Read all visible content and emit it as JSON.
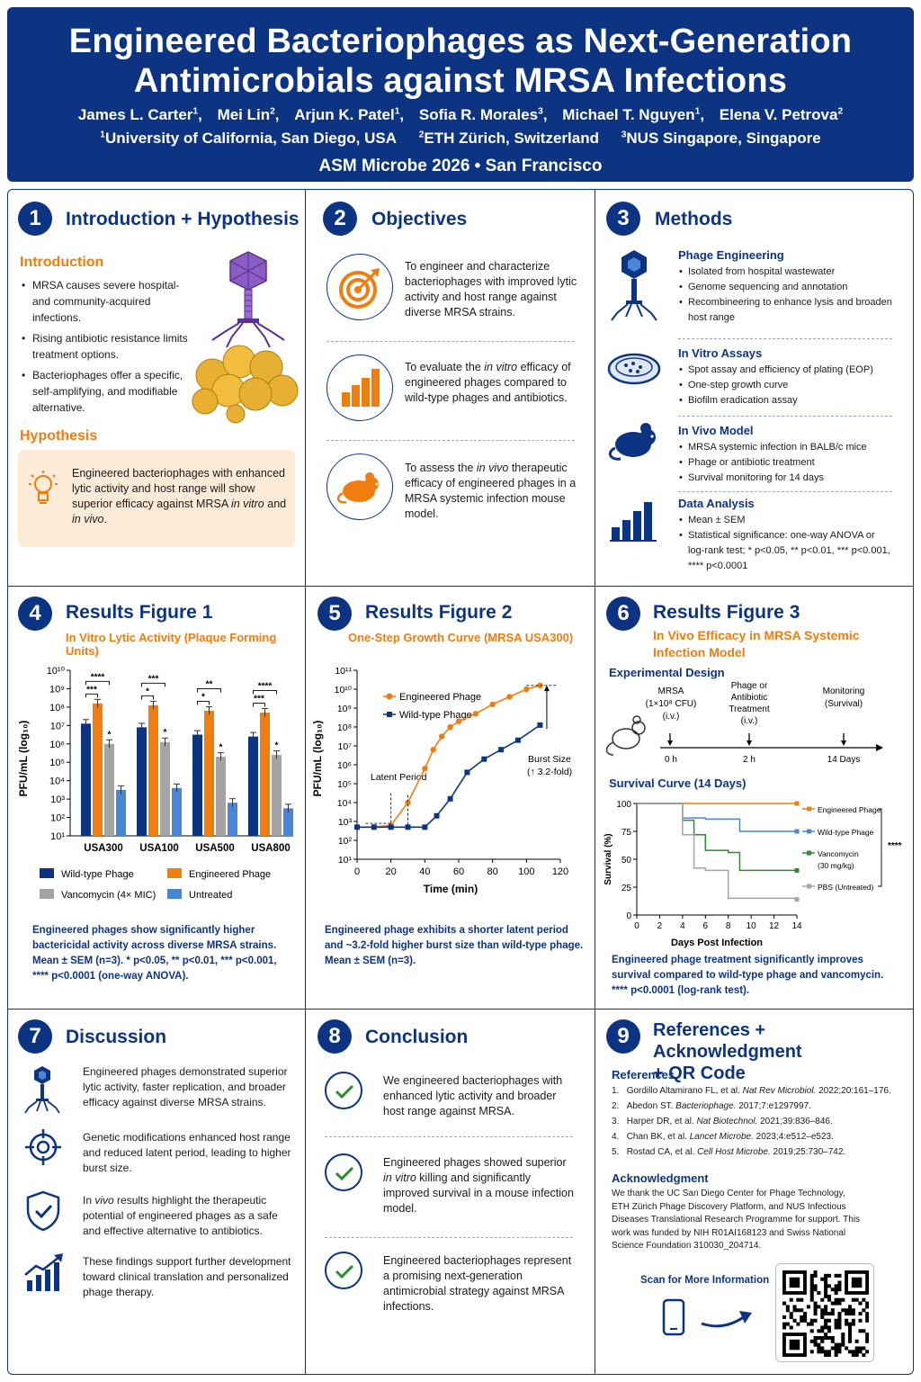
{
  "header": {
    "title_line1": "Engineered Bacteriophages as Next-Generation",
    "title_line2": "Antimicrobials against MRSA Infections",
    "authors": [
      {
        "name": "James L. Carter",
        "sup": "1"
      },
      {
        "name": "Mei Lin",
        "sup": "2"
      },
      {
        "name": "Arjun K. Patel",
        "sup": "1"
      },
      {
        "name": "Sofia R. Morales",
        "sup": "3"
      },
      {
        "name": "Michael T. Nguyen",
        "sup": "1"
      },
      {
        "name": "Elena V. Petrova",
        "sup": "2"
      }
    ],
    "affiliations": [
      {
        "sup": "1",
        "name": "University of California, San Diego, USA"
      },
      {
        "sup": "2",
        "name": "ETH Zürich, Switzerland"
      },
      {
        "sup": "3",
        "name": "NUS Singapore, Singapore"
      }
    ],
    "conference": "ASM Microbe 2026  •  San Francisco"
  },
  "sections": {
    "s1": {
      "num": "1",
      "title": "Introduction + Hypothesis",
      "intro_heading": "Introduction",
      "intro_bullets": [
        "MRSA causes severe hospital- and community-acquired infections.",
        "Rising antibiotic resistance limits treatment options.",
        "Bacteriophages offer a specific, self-amplifying, and modifiable alternative."
      ],
      "hyp_heading": "Hypothesis",
      "hyp_text_a": "Engineered bacteriophages with enhanced lytic activity and host range will show superior efficacy against MRSA ",
      "hyp_in_vitro": "in vitro",
      "hyp_and": " and ",
      "hyp_in_vivo": "in vivo",
      "hyp_end": "."
    },
    "s2": {
      "num": "2",
      "title": "Objectives",
      "obj1": "To engineer and characterize bacteriophages with improved lytic activity and host range against diverse MRSA strains.",
      "obj2_a": "To evaluate the ",
      "obj2_i": "in vitro",
      "obj2_b": " efficacy of engineered phages compared to wild-type phages and antibiotics.",
      "obj3_a": "To assess the ",
      "obj3_i": "in vivo",
      "obj3_b": " therapeutic efficacy of engineered phages in a MRSA systemic infection mouse model."
    },
    "s3": {
      "num": "3",
      "title": "Methods",
      "m1_head": "Phage Engineering",
      "m1": [
        "Isolated from hospital wastewater",
        "Genome sequencing and annotation",
        "Recombineering to enhance lysis and broaden host range"
      ],
      "m2_head": "In Vitro Assays",
      "m2": [
        "Spot assay and efficiency of plating (EOP)",
        "One-step growth curve",
        "Biofilm eradication assay"
      ],
      "m3_head": "In Vivo Model",
      "m3": [
        "MRSA systemic infection in BALB/c mice",
        "Phage or antibiotic treatment",
        "Survival monitoring for 14 days"
      ],
      "m4_head": "Data Analysis",
      "m4": [
        "Mean ± SEM",
        "Statistical significance: one-way ANOVA or log-rank test; * p<0.05, ** p<0.01, *** p<0.001, **** p<0.0001"
      ]
    },
    "s4": {
      "num": "4",
      "title": "Results Figure 1",
      "subtitle": "In Vitro Lytic Activity (Plaque Forming Units)",
      "ylabel": "PFU/mL (log₁₀)",
      "caption": "Engineered phages show significantly higher bactericidal activity across diverse MRSA strains. Mean ± SEM (n=3). * p<0.05, ** p<0.01, *** p<0.001, **** p<0.0001 (one-way ANOVA).",
      "legend": [
        "Wild-type Phage",
        "Engineered Phage",
        "Vancomycin (4× MIC)",
        "Untreated"
      ]
    },
    "s5": {
      "num": "5",
      "title": "Results Figure 2",
      "subtitle": "One-Step Growth Curve (MRSA USA300)",
      "ylabel": "PFU/mL (log₁₀)",
      "xlabel": "Time (min)",
      "legend": [
        "Engineered Phage",
        "Wild-type Phage"
      ],
      "ann_latent": "Latent Period",
      "ann_burst1": "Burst Size",
      "ann_burst2": "(↑ 3.2-fold)",
      "caption": "Engineered phage exhibits a shorter latent period and ~3.2-fold higher burst size than wild-type phage. Mean ± SEM (n=3)."
    },
    "s6": {
      "num": "6",
      "title": "Results Figure 3",
      "subtitle": "In Vivo Efficacy in MRSA Systemic Infection Model",
      "design_head": "Experimental Design",
      "design_labels": [
        "MRSA",
        "(1×10⁸ CFU)",
        "(i.v.)",
        "Phage or",
        "Antibiotic",
        "Treatment",
        "(i.v.)",
        "Monitoring",
        "(Survival)"
      ],
      "timeline": [
        "0 h",
        "2 h",
        "14 Days"
      ],
      "surv_head": "Survival Curve (14 Days)",
      "ylabel": "Survival (%)",
      "xlabel": "Days Post Infection",
      "legend": [
        "Engineered Phage",
        "Wild-type Phage",
        "Vancomycin",
        "(30 mg/kg)",
        "PBS (Untreated)"
      ],
      "sig": "****",
      "caption": "Engineered phage treatment significantly improves survival compared to wild-type phage and vancomycin. **** p<0.0001 (log-rank test)."
    },
    "s7": {
      "num": "7",
      "title": "Discussion",
      "d1": "Engineered phages demonstrated superior lytic activity, faster replication, and broader efficacy against diverse MRSA strains.",
      "d2": "Genetic modifications enhanced host range and reduced latent period, leading to higher burst size.",
      "d3_a": "In ",
      "d3_i": "vivo",
      "d3_b": " results highlight the therapeutic potential of engineered phages as a safe and effective alternative to antibiotics.",
      "d4": "These findings support further development toward clinical translation and personalized phage therapy."
    },
    "s8": {
      "num": "8",
      "title": "Conclusion",
      "c1": "We engineered bacteriophages with enhanced lytic activity and broader host range against MRSA.",
      "c2_a": "Engineered phages showed superior ",
      "c2_i": "in vitro",
      "c2_b": " killing and significantly improved survival in a mouse infection model.",
      "c3": "Engineered bacteriophages represent a promising next-generation antimicrobial strategy against MRSA infections."
    },
    "s9": {
      "num": "9",
      "title_line1": "References + Acknowledgment",
      "title_line2": "+ QR Code",
      "ref_head": "References",
      "refs": [
        {
          "pre": "Gordillo Altamirano FL, et al. ",
          "j": "Nat Rev Microbiol.",
          "post": " 2022;20:161–176."
        },
        {
          "pre": "Abedon ST. ",
          "j": "Bacteriophage.",
          "post": " 2017;7:e1297997."
        },
        {
          "pre": "Harper DR, et al. ",
          "j": "Nat Biotechnol.",
          "post": " 2021;39:836–846."
        },
        {
          "pre": "Chan BK, et al. ",
          "j": "Lancet Microbe.",
          "post": " 2023;4:e512–e523."
        },
        {
          "pre": "Rostad CA, et al. ",
          "j": "Cell Host Microbe.",
          "post": " 2019;25:730–742."
        }
      ],
      "ack_head": "Acknowledgment",
      "ack": "We thank the UC San Diego Center for Phage Technology, ETH Zürich Phage Discovery Platform, and NUS Infectious Diseases Translational Research Programme for support. This work was funded by NIH R01AI168123 and Swiss National Science Foundation 310030_204714.",
      "scan": "Scan for More Information"
    }
  },
  "colors": {
    "navy": "#0d3483",
    "orange": "#ef7d0f",
    "gray": "#a4a4a4",
    "blue": "#4a86d6",
    "green": "#2e8b2e"
  },
  "chart_data": [
    {
      "type": "bar",
      "title": "In Vitro Lytic Activity (Plaque Forming Units)",
      "ylabel": "PFU/mL (log₁₀)",
      "yscale": "log",
      "ylim_log10": [
        1,
        10
      ],
      "categories": [
        "USA300",
        "USA100",
        "USA500",
        "USA800"
      ],
      "series": [
        {
          "name": "Wild-type Phage",
          "log10_values": [
            7.1,
            6.9,
            6.5,
            6.4
          ],
          "color": "#0d3483"
        },
        {
          "name": "Engineered Phage",
          "log10_values": [
            8.2,
            8.1,
            7.8,
            7.7
          ],
          "color": "#ef7d0f"
        },
        {
          "name": "Vancomycin (4× MIC)",
          "log10_values": [
            6.0,
            6.1,
            5.3,
            5.4
          ],
          "color": "#a4a4a4"
        },
        {
          "name": "Untreated",
          "log10_values": [
            3.5,
            3.6,
            2.8,
            2.5
          ],
          "color": "#4a86d6"
        }
      ],
      "significance": [
        {
          "category": "USA300",
          "labels": [
            "****",
            "***",
            "*"
          ]
        },
        {
          "category": "USA100",
          "labels": [
            "***",
            "*",
            "*"
          ]
        },
        {
          "category": "USA500",
          "labels": [
            "**",
            "*",
            "*"
          ]
        },
        {
          "category": "USA800",
          "labels": [
            "****",
            "***",
            "*"
          ]
        }
      ]
    },
    {
      "type": "line",
      "title": "One-Step Growth Curve (MRSA USA300)",
      "xlabel": "Time (min)",
      "ylabel": "PFU/mL (log₁₀)",
      "xlim": [
        0,
        120
      ],
      "ylim_log10": [
        1,
        11
      ],
      "yscale": "log",
      "x_ticks": [
        0,
        20,
        40,
        60,
        80,
        100,
        120
      ],
      "series": [
        {
          "name": "Engineered Phage",
          "color": "#ef7d0f",
          "x": [
            0,
            10,
            20,
            30,
            40,
            45,
            50,
            55,
            60,
            70,
            80,
            90,
            100,
            108
          ],
          "log10_values": [
            2.7,
            2.7,
            2.8,
            4.0,
            5.8,
            6.8,
            7.5,
            8.0,
            8.3,
            8.7,
            9.2,
            9.6,
            10.0,
            10.2
          ]
        },
        {
          "name": "Wild-type Phage",
          "color": "#0d3483",
          "x": [
            0,
            10,
            20,
            30,
            40,
            47,
            55,
            65,
            75,
            85,
            95,
            108
          ],
          "log10_values": [
            2.7,
            2.7,
            2.7,
            2.7,
            2.7,
            3.3,
            4.2,
            5.6,
            6.3,
            6.8,
            7.3,
            8.1
          ]
        }
      ]
    },
    {
      "type": "line",
      "subtype": "kaplan-meier",
      "title": "Survival Curve (14 Days)",
      "xlabel": "Days Post Infection",
      "ylabel": "Survival (%)",
      "xlim": [
        0,
        14
      ],
      "ylim": [
        0,
        100
      ],
      "x_ticks": [
        0,
        2,
        4,
        6,
        8,
        10,
        12,
        14
      ],
      "y_ticks": [
        0,
        25,
        50,
        75,
        100
      ],
      "series": [
        {
          "name": "Engineered Phage",
          "color": "#ef7d0f",
          "x": [
            0,
            14
          ],
          "y": [
            100,
            100
          ]
        },
        {
          "name": "Wild-type Phage",
          "color": "#4a86d6",
          "x": [
            0,
            3,
            4,
            6,
            9,
            14
          ],
          "y": [
            100,
            100,
            87,
            86,
            75,
            75
          ]
        },
        {
          "name": "Vancomycin (30 mg/kg)",
          "color": "#2e8b2e",
          "x": [
            0,
            3,
            4,
            5,
            6,
            8,
            9,
            14
          ],
          "y": [
            100,
            100,
            85,
            72,
            58,
            56,
            40,
            40
          ]
        },
        {
          "name": "PBS (Untreated)",
          "color": "#a4a4a4",
          "x": [
            0,
            3,
            4,
            5,
            6,
            8,
            14
          ],
          "y": [
            100,
            100,
            72,
            42,
            40,
            15,
            14
          ]
        }
      ],
      "legend_position": "right",
      "significance": "****"
    }
  ]
}
